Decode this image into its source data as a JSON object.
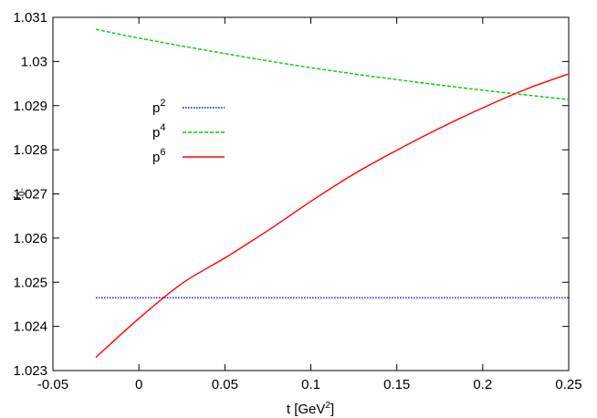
{
  "chart_data": {
    "type": "line",
    "xlabel": "t [GeV²]",
    "xlabel_base": "t [GeV",
    "xlabel_sup": "2",
    "xlabel_tail": "]",
    "ylabel": "r0-",
    "ylabel_base": "r",
    "ylabel_sub": "0-",
    "xlim": [
      -0.05,
      0.25
    ],
    "ylim": [
      1.023,
      1.031
    ],
    "xticks": [
      -0.05,
      0,
      0.05,
      0.1,
      0.15,
      0.2,
      0.25
    ],
    "xtick_labels": [
      "-0.05",
      "0",
      "0.05",
      "0.1",
      "0.15",
      "0.2",
      "0.25"
    ],
    "yticks": [
      1.023,
      1.024,
      1.025,
      1.026,
      1.027,
      1.028,
      1.029,
      1.03,
      1.031
    ],
    "ytick_labels": [
      "1.023",
      "1.024",
      "1.025",
      "1.026",
      "1.027",
      "1.028",
      "1.029",
      "1.03",
      "1.031"
    ],
    "grid": false,
    "legend_position": "upper-left",
    "series": [
      {
        "name": "p2",
        "name_base": "p",
        "name_sup": "2",
        "color": "#0000ff",
        "dash": "dotted",
        "x": [
          -0.025,
          0.25
        ],
        "y": [
          1.02465,
          1.02465
        ]
      },
      {
        "name": "p4",
        "name_base": "p",
        "name_sup": "4",
        "color": "#00cc00",
        "dash": "dashed",
        "x": [
          -0.025,
          0.0,
          0.05,
          0.1,
          0.15,
          0.2,
          0.25
        ],
        "y": [
          1.03073,
          1.03053,
          1.03018,
          1.02986,
          1.02959,
          1.02935,
          1.02914
        ]
      },
      {
        "name": "p6",
        "name_base": "p",
        "name_sup": "6",
        "color": "#ff0000",
        "dash": "solid",
        "x": [
          -0.025,
          0.0,
          0.025,
          0.05,
          0.075,
          0.1,
          0.125,
          0.15,
          0.175,
          0.2,
          0.225,
          0.25
        ],
        "y": [
          1.0233,
          1.02418,
          1.02497,
          1.02555,
          1.02617,
          1.02683,
          1.02745,
          1.02799,
          1.02849,
          1.02895,
          1.02937,
          1.02972
        ]
      }
    ]
  }
}
